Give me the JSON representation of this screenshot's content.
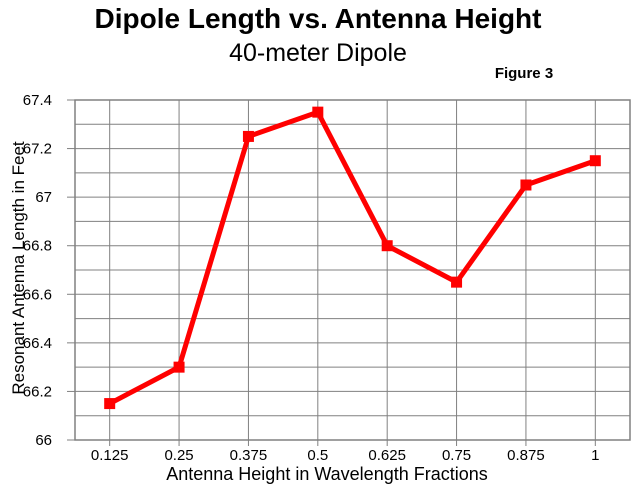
{
  "header": {
    "title": "Dipole Length vs. Antenna Height",
    "subtitle": "40-meter Dipole",
    "figure_label": "Figure 3"
  },
  "chart_data": {
    "type": "line",
    "title": "Dipole Length vs. Antenna Height",
    "subtitle": "40-meter Dipole",
    "figure_label": "Figure 3",
    "xlabel": "Antenna Height in Wavelength Fractions",
    "ylabel": "Resonant Antenna Length in Feet",
    "x": [
      0.125,
      0.25,
      0.375,
      0.5,
      0.625,
      0.75,
      0.875,
      1
    ],
    "x_tick_labels": [
      "0.125",
      "0.25",
      "0.375",
      "0.5",
      "0.625",
      "0.75",
      "0.875",
      "1"
    ],
    "y": [
      66.15,
      66.3,
      67.25,
      67.35,
      66.8,
      66.65,
      67.05,
      67.15
    ],
    "ylim": [
      66,
      67.4
    ],
    "y_grid_step": 0.1,
    "y_major_tick_step": 0.2,
    "y_tick_labels": [
      "66",
      "66.2",
      "66.4",
      "66.6",
      "66.8",
      "67",
      "67.2",
      "67.4"
    ],
    "grid": "on",
    "legend": "none",
    "marker": "square",
    "line_color": "#FF0000",
    "grid_color": "#808080",
    "text_color": "#000000"
  }
}
